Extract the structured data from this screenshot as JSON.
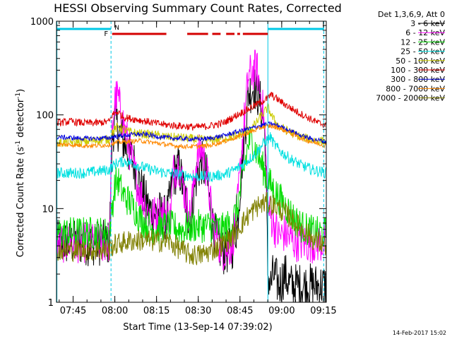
{
  "chart_data": {
    "type": "line",
    "title": "HESSI Observing Summary Count Rates, Corrected",
    "xlabel": "Start Time (13-Sep-14 07:39:02)",
    "ylabel_main": "Corrected Count Rate (s",
    "ylabel_sup1": "-1",
    "ylabel_mid": " detector",
    "ylabel_sup2": "-1",
    "ylabel_end": ")",
    "yscale": "log",
    "ylim": [
      1,
      1000
    ],
    "xlim_minutes": [
      0,
      97
    ],
    "x_ticks": [
      {
        "label": "07:45",
        "minute": 5.97
      },
      {
        "label": "08:00",
        "minute": 20.97
      },
      {
        "label": "08:15",
        "minute": 35.97
      },
      {
        "label": "08:30",
        "minute": 50.97
      },
      {
        "label": "08:45",
        "minute": 65.97
      },
      {
        "label": "09:00",
        "minute": 80.97
      },
      {
        "label": "09:15",
        "minute": 95.97
      }
    ],
    "y_ticks": [
      {
        "label": "1",
        "value": 1
      },
      {
        "label": "10",
        "value": 10
      },
      {
        "label": "100",
        "value": 100
      },
      {
        "label": "1000",
        "value": 1000
      }
    ],
    "legend_header": "Det 1,3,6,9, Att 0",
    "legend_position": "right",
    "flags": [
      {
        "label": "F",
        "color": "#d40000"
      },
      {
        "label": "N",
        "color": "#00c8e6"
      }
    ],
    "series": [
      {
        "name": "3 - 6 keV",
        "color": "#000000",
        "points": [
          [
            0,
            4.3
          ],
          [
            19,
            4.3
          ],
          [
            20,
            55
          ],
          [
            21,
            90
          ],
          [
            23,
            60
          ],
          [
            26,
            40
          ],
          [
            28,
            30
          ],
          [
            30,
            18
          ],
          [
            33,
            10
          ],
          [
            35,
            9
          ],
          [
            37,
            9
          ],
          [
            39,
            8
          ],
          [
            40,
            9
          ],
          [
            42,
            22
          ],
          [
            44,
            28
          ],
          [
            46,
            14
          ],
          [
            48,
            7
          ],
          [
            50,
            20
          ],
          [
            52,
            32
          ],
          [
            54,
            22
          ],
          [
            56,
            7
          ],
          [
            58,
            4
          ],
          [
            60,
            3.4
          ],
          [
            63,
            3.6
          ],
          [
            65,
            7
          ],
          [
            67,
            40
          ],
          [
            69,
            170
          ],
          [
            71,
            200
          ],
          [
            73,
            150
          ],
          [
            74,
            100
          ],
          [
            75,
            60
          ],
          [
            76,
            2
          ],
          [
            77,
            1.5
          ],
          [
            78,
            2
          ],
          [
            80,
            1.5
          ],
          [
            82,
            2
          ],
          [
            84,
            1.5
          ]
        ]
      },
      {
        "name": "6 - 12 keV",
        "color": "#ff00ff",
        "points": [
          [
            0,
            4.3
          ],
          [
            19,
            4.3
          ],
          [
            20,
            70
          ],
          [
            21,
            140
          ],
          [
            22,
            160
          ],
          [
            23,
            110
          ],
          [
            26,
            45
          ],
          [
            28,
            25
          ],
          [
            30,
            15
          ],
          [
            33,
            9
          ],
          [
            35,
            8.5
          ],
          [
            37,
            8.5
          ],
          [
            39,
            9
          ],
          [
            41,
            8
          ],
          [
            42,
            25
          ],
          [
            44,
            30
          ],
          [
            46,
            15
          ],
          [
            48,
            8
          ],
          [
            50,
            28
          ],
          [
            52,
            45
          ],
          [
            54,
            25
          ],
          [
            56,
            8
          ],
          [
            58,
            4.5
          ],
          [
            60,
            3.5
          ],
          [
            63,
            4
          ],
          [
            65,
            10
          ],
          [
            67,
            60
          ],
          [
            69,
            260
          ],
          [
            71,
            300
          ],
          [
            72,
            320
          ],
          [
            73,
            200
          ],
          [
            74,
            130
          ],
          [
            75,
            60
          ],
          [
            76,
            10
          ],
          [
            78,
            7
          ],
          [
            80,
            5
          ],
          [
            82,
            5.5
          ],
          [
            85,
            4.5
          ],
          [
            90,
            4.3
          ],
          [
            97,
            4.3
          ]
        ]
      },
      {
        "name": "12 - 25 keV",
        "color": "#00dd00",
        "points": [
          [
            0,
            5.5
          ],
          [
            19,
            5.5
          ],
          [
            20,
            10
          ],
          [
            21,
            18
          ],
          [
            22,
            20
          ],
          [
            24,
            14
          ],
          [
            26,
            12
          ],
          [
            28,
            10
          ],
          [
            30,
            8
          ],
          [
            33,
            6.5
          ],
          [
            36,
            6
          ],
          [
            40,
            6.5
          ],
          [
            45,
            6
          ],
          [
            50,
            6.5
          ],
          [
            55,
            6.5
          ],
          [
            60,
            6
          ],
          [
            63,
            7
          ],
          [
            65,
            10
          ],
          [
            67,
            22
          ],
          [
            69,
            50
          ],
          [
            70,
            55
          ],
          [
            72,
            40
          ],
          [
            74,
            28
          ],
          [
            76,
            20
          ],
          [
            78,
            16
          ],
          [
            80,
            13
          ],
          [
            82,
            11
          ],
          [
            84,
            9
          ],
          [
            86,
            7.5
          ],
          [
            88,
            6.5
          ],
          [
            90,
            6
          ],
          [
            93,
            5.5
          ],
          [
            97,
            5.5
          ]
        ]
      },
      {
        "name": "25 - 50 keV",
        "color": "#00e0e0",
        "points": [
          [
            0,
            24
          ],
          [
            10,
            24
          ],
          [
            15,
            25
          ],
          [
            19,
            26
          ],
          [
            20,
            28
          ],
          [
            22,
            31
          ],
          [
            25,
            32
          ],
          [
            28,
            30
          ],
          [
            32,
            27
          ],
          [
            36,
            25
          ],
          [
            40,
            24
          ],
          [
            45,
            23
          ],
          [
            50,
            22
          ],
          [
            55,
            22
          ],
          [
            60,
            23
          ],
          [
            63,
            25
          ],
          [
            66,
            28
          ],
          [
            69,
            33
          ],
          [
            72,
            40
          ],
          [
            74,
            48
          ],
          [
            76,
            55
          ],
          [
            77,
            58
          ],
          [
            78,
            50
          ],
          [
            80,
            42
          ],
          [
            84,
            34
          ],
          [
            88,
            29
          ],
          [
            92,
            26
          ],
          [
            97,
            24
          ]
        ]
      },
      {
        "name": "50 - 100 keV",
        "color": "#cccc00",
        "points": [
          [
            0,
            50
          ],
          [
            10,
            52
          ],
          [
            19,
            55
          ],
          [
            20,
            65
          ],
          [
            22,
            75
          ],
          [
            24,
            70
          ],
          [
            26,
            66
          ],
          [
            30,
            63
          ],
          [
            35,
            61
          ],
          [
            40,
            58
          ],
          [
            45,
            57
          ],
          [
            50,
            55
          ],
          [
            55,
            54
          ],
          [
            60,
            56
          ],
          [
            65,
            60
          ],
          [
            70,
            70
          ],
          [
            74,
            100
          ],
          [
            76,
            120
          ],
          [
            78,
            90
          ],
          [
            80,
            75
          ],
          [
            84,
            65
          ],
          [
            88,
            58
          ],
          [
            92,
            54
          ],
          [
            97,
            52
          ]
        ]
      },
      {
        "name": "100 - 300 keV",
        "color": "#e00000",
        "points": [
          [
            0,
            82
          ],
          [
            5,
            85
          ],
          [
            10,
            82
          ],
          [
            15,
            82
          ],
          [
            19,
            85
          ],
          [
            20,
            100
          ],
          [
            22,
            108
          ],
          [
            24,
            95
          ],
          [
            26,
            92
          ],
          [
            30,
            88
          ],
          [
            35,
            82
          ],
          [
            40,
            78
          ],
          [
            45,
            76
          ],
          [
            50,
            74
          ],
          [
            55,
            76
          ],
          [
            60,
            82
          ],
          [
            65,
            100
          ],
          [
            70,
            120
          ],
          [
            74,
            140
          ],
          [
            76,
            150
          ],
          [
            77,
            165
          ],
          [
            79,
            150
          ],
          [
            82,
            130
          ],
          [
            86,
            110
          ],
          [
            90,
            95
          ],
          [
            94,
            82
          ],
          [
            97,
            78
          ]
        ]
      },
      {
        "name": "300 - 800 keV",
        "color": "#0000e0",
        "points": [
          [
            0,
            58
          ],
          [
            5,
            57
          ],
          [
            10,
            56
          ],
          [
            15,
            56
          ],
          [
            19,
            57
          ],
          [
            20,
            58
          ],
          [
            24,
            60
          ],
          [
            28,
            62
          ],
          [
            32,
            62
          ],
          [
            36,
            59
          ],
          [
            40,
            57
          ],
          [
            45,
            56
          ],
          [
            50,
            55
          ],
          [
            55,
            56
          ],
          [
            60,
            60
          ],
          [
            65,
            66
          ],
          [
            70,
            72
          ],
          [
            74,
            78
          ],
          [
            77,
            80
          ],
          [
            80,
            76
          ],
          [
            84,
            68
          ],
          [
            88,
            60
          ],
          [
            92,
            55
          ],
          [
            97,
            52
          ]
        ]
      },
      {
        "name": "800 - 7000 keV",
        "color": "#ff8800",
        "points": [
          [
            0,
            48
          ],
          [
            5,
            48
          ],
          [
            10,
            47
          ],
          [
            15,
            47
          ],
          [
            19,
            48
          ],
          [
            22,
            51
          ],
          [
            26,
            52
          ],
          [
            30,
            53
          ],
          [
            34,
            51
          ],
          [
            38,
            49
          ],
          [
            42,
            47
          ],
          [
            46,
            46
          ],
          [
            50,
            46
          ],
          [
            55,
            47
          ],
          [
            60,
            52
          ],
          [
            65,
            58
          ],
          [
            70,
            66
          ],
          [
            74,
            74
          ],
          [
            77,
            76
          ],
          [
            80,
            72
          ],
          [
            84,
            64
          ],
          [
            88,
            56
          ],
          [
            92,
            51
          ],
          [
            97,
            47
          ]
        ]
      },
      {
        "name": "7000 - 20000 keV",
        "color": "#808000",
        "points": [
          [
            0,
            3.6
          ],
          [
            10,
            3.6
          ],
          [
            19,
            3.6
          ],
          [
            20,
            4
          ],
          [
            23,
            4.3
          ],
          [
            26,
            4.5
          ],
          [
            30,
            4.6
          ],
          [
            35,
            4.5
          ],
          [
            40,
            4.5
          ],
          [
            45,
            3.6
          ],
          [
            48,
            3.2
          ],
          [
            52,
            3.2
          ],
          [
            56,
            3.6
          ],
          [
            60,
            4.2
          ],
          [
            63,
            5
          ],
          [
            66,
            6.5
          ],
          [
            69,
            8.5
          ],
          [
            72,
            10.5
          ],
          [
            75,
            11.5
          ],
          [
            78,
            11
          ],
          [
            81,
            9.5
          ],
          [
            84,
            8
          ],
          [
            87,
            6.5
          ],
          [
            90,
            5.5
          ],
          [
            93,
            4.5
          ],
          [
            97,
            4
          ]
        ]
      }
    ],
    "footer_date": "14-Feb-2017 15:02"
  }
}
